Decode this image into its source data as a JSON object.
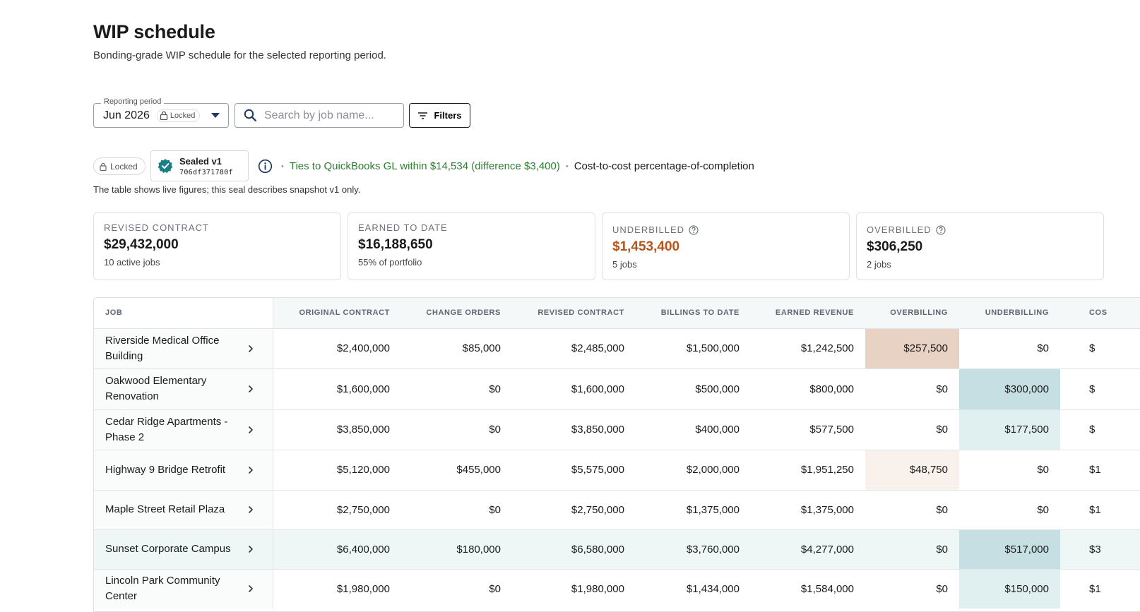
{
  "header": {
    "title": "WIP schedule",
    "subtitle": "Bonding-grade WIP schedule for the selected reporting period."
  },
  "controls": {
    "period_label": "Reporting period",
    "period_value": "Jun 2026",
    "period_lock": "Locked",
    "search_placeholder": "Search by job name...",
    "filters_label": "Filters"
  },
  "seal": {
    "locked_label": "Locked",
    "title": "Sealed v1",
    "hash": "706df371780f",
    "gl_text": "Ties to QuickBooks GL within $14,534 (difference $3,400)",
    "method_text": "Cost-to-cost percentage-of-completion",
    "note": "The table shows live figures; this seal describes snapshot v1 only."
  },
  "summary": [
    {
      "label": "REVISED CONTRACT",
      "value": "$29,432,000",
      "sub": "10 active jobs"
    },
    {
      "label": "EARNED TO DATE",
      "value": "$16,188,650",
      "sub": "55% of portfolio"
    },
    {
      "label": "UNDERBILLED",
      "value": "$1,453,400",
      "sub": "5 jobs"
    },
    {
      "label": "OVERBILLED",
      "value": "$306,250",
      "sub": "2 jobs"
    }
  ],
  "table": {
    "headers": [
      "JOB",
      "ORIGINAL CONTRACT",
      "CHANGE ORDERS",
      "REVISED CONTRACT",
      "BILLINGS TO DATE",
      "EARNED REVENUE",
      "OVERBILLING",
      "UNDERBILLING",
      "COS"
    ],
    "rows": [
      {
        "job": "Riverside Medical Office Building",
        "original": "$2,400,000",
        "change": "$85,000",
        "revised": "$2,485,000",
        "billings": "$1,500,000",
        "earned": "$1,242,500",
        "over": "$257,500",
        "under": "$0",
        "cost": "$"
      },
      {
        "job": "Oakwood Elementary Renovation",
        "original": "$1,600,000",
        "change": "$0",
        "revised": "$1,600,000",
        "billings": "$500,000",
        "earned": "$800,000",
        "over": "$0",
        "under": "$300,000",
        "cost": "$"
      },
      {
        "job": "Cedar Ridge Apartments - Phase 2",
        "original": "$3,850,000",
        "change": "$0",
        "revised": "$3,850,000",
        "billings": "$400,000",
        "earned": "$577,500",
        "over": "$0",
        "under": "$177,500",
        "cost": "$"
      },
      {
        "job": "Highway 9 Bridge Retrofit",
        "original": "$5,120,000",
        "change": "$455,000",
        "revised": "$5,575,000",
        "billings": "$2,000,000",
        "earned": "$1,951,250",
        "over": "$48,750",
        "under": "$0",
        "cost": "$1"
      },
      {
        "job": "Maple Street Retail Plaza",
        "original": "$2,750,000",
        "change": "$0",
        "revised": "$2,750,000",
        "billings": "$1,375,000",
        "earned": "$1,375,000",
        "over": "$0",
        "under": "$0",
        "cost": "$1"
      },
      {
        "job": "Sunset Corporate Campus",
        "original": "$6,400,000",
        "change": "$180,000",
        "revised": "$6,580,000",
        "billings": "$3,760,000",
        "earned": "$4,277,000",
        "over": "$0",
        "under": "$517,000",
        "cost": "$3"
      },
      {
        "job": "Lincoln Park Community Center",
        "original": "$1,980,000",
        "change": "$0",
        "revised": "$1,980,000",
        "billings": "$1,434,000",
        "earned": "$1,584,000",
        "over": "$0",
        "under": "$150,000",
        "cost": "$1"
      }
    ]
  },
  "colors": {
    "accent_teal": "#1b7f86",
    "underbilled_text": "#b5541b",
    "gl_green": "#2e7d32",
    "overbilling_strong": "#e8d2c4",
    "overbilling_light": "#f8f1ec",
    "underbilling_strong": "#c6dfe3",
    "underbilling_light": "#e0eff0"
  }
}
